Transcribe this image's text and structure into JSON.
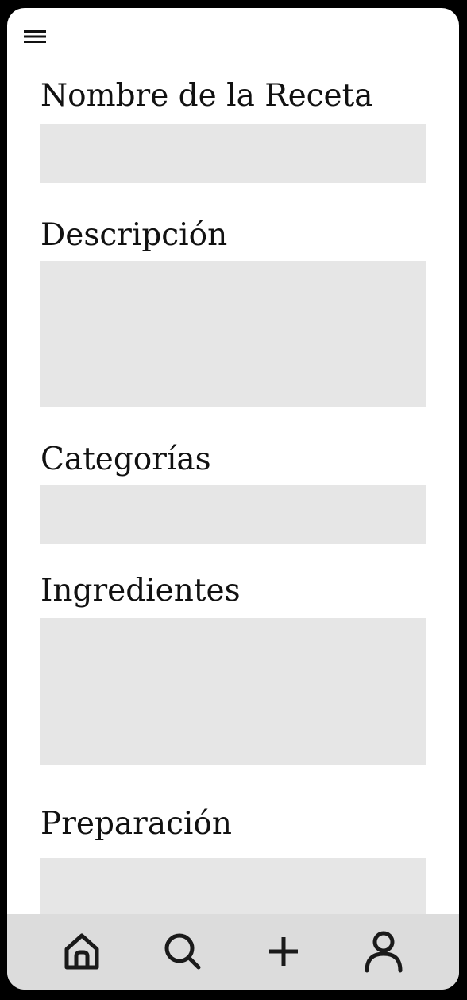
{
  "header": {
    "menu_icon": "hamburger-menu-icon"
  },
  "form": {
    "fields": [
      {
        "label": "Nombre de la Receta",
        "value": "",
        "placeholder": ""
      },
      {
        "label": "Descripción",
        "value": "",
        "placeholder": ""
      },
      {
        "label": "Categorías",
        "value": "",
        "placeholder": ""
      },
      {
        "label": "Ingredientes",
        "value": "",
        "placeholder": ""
      },
      {
        "label": "Preparación",
        "value": "",
        "placeholder": ""
      }
    ]
  },
  "bottom_nav": {
    "items": [
      {
        "icon": "home-icon"
      },
      {
        "icon": "search-icon"
      },
      {
        "icon": "add-icon"
      },
      {
        "icon": "profile-icon"
      }
    ]
  },
  "colors": {
    "frame": "#000000",
    "screen": "#ffffff",
    "field_background": "#e6e6e6",
    "nav_background": "#dcdcdc",
    "icon": "#1a1a1a"
  }
}
